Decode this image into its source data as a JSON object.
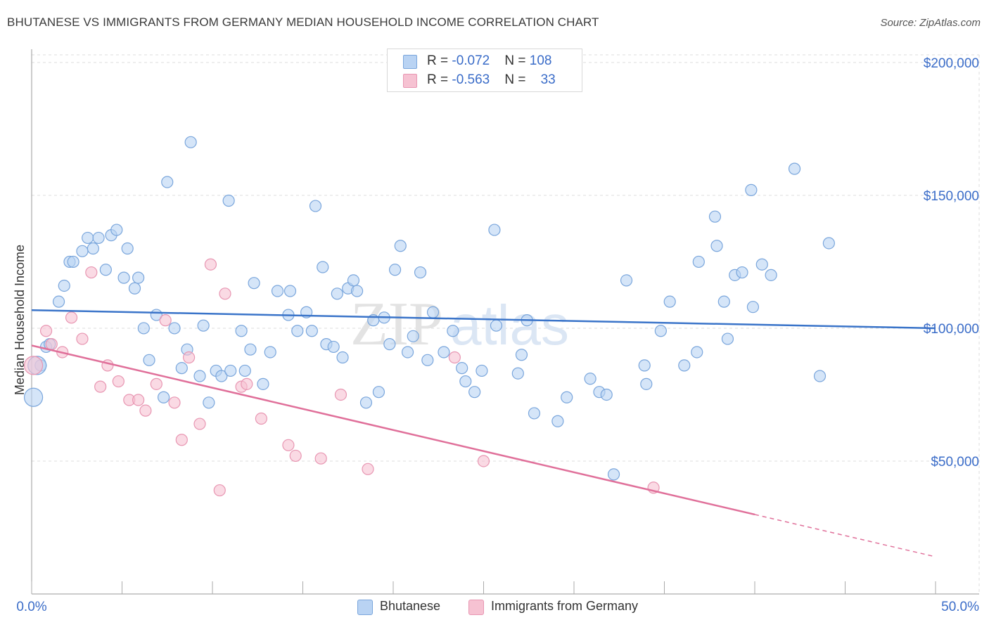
{
  "title": "BHUTANESE VS IMMIGRANTS FROM GERMANY MEDIAN HOUSEHOLD INCOME CORRELATION CHART",
  "source": "Source: ZipAtlas.com",
  "watermark": {
    "zip": "ZIP",
    "atlas": "atlas"
  },
  "legend": {
    "rows": [
      {
        "r_label": "R = ",
        "r_value": "-0.072",
        "n_label": "N = ",
        "n_value": "108"
      },
      {
        "r_label": "R = ",
        "r_value": "-0.563",
        "n_label": "N = ",
        "n_value": "33"
      }
    ]
  },
  "colors": {
    "blue_fill": "#b9d3f3",
    "blue_stroke": "#7aa6dc",
    "blue_line": "#3a74c9",
    "pink_fill": "#f6c2d2",
    "pink_stroke": "#e896b2",
    "pink_line": "#e0709a",
    "axis_label": "#3a6cc8",
    "grid": "#dddddd"
  },
  "chart_data": {
    "type": "scatter",
    "title": "BHUTANESE VS IMMIGRANTS FROM GERMANY MEDIAN HOUSEHOLD INCOME CORRELATION CHART",
    "xlabel": "",
    "ylabel": "Median Household Income",
    "xlim": [
      0,
      50
    ],
    "ylim": [
      0,
      205000
    ],
    "x_tick_labels": [
      "0.0%",
      "50.0%"
    ],
    "y_tick_labels": [
      "$50,000",
      "$100,000",
      "$150,000",
      "$200,000"
    ],
    "y_ticks": [
      50000,
      100000,
      150000,
      200000
    ],
    "grid": true,
    "legend_position": "top-center",
    "series": [
      {
        "name": "Bhutanese",
        "r": -0.072,
        "n": 108,
        "trend": {
          "x": [
            0,
            50
          ],
          "y": [
            106800,
            100000
          ],
          "dashed_from": null
        },
        "points": [
          [
            0.1,
            74000
          ],
          [
            0.5,
            86000
          ],
          [
            0.8,
            93000
          ],
          [
            1.0,
            94000
          ],
          [
            1.5,
            110000
          ],
          [
            1.8,
            116000
          ],
          [
            2.1,
            125000
          ],
          [
            2.3,
            125000
          ],
          [
            2.8,
            129000
          ],
          [
            3.1,
            134000
          ],
          [
            3.4,
            130000
          ],
          [
            3.7,
            134000
          ],
          [
            4.1,
            122000
          ],
          [
            4.4,
            135000
          ],
          [
            4.7,
            137000
          ],
          [
            5.1,
            119000
          ],
          [
            5.3,
            130000
          ],
          [
            5.7,
            115000
          ],
          [
            5.9,
            119000
          ],
          [
            6.2,
            100000
          ],
          [
            6.5,
            88000
          ],
          [
            6.9,
            105000
          ],
          [
            7.3,
            74000
          ],
          [
            7.5,
            155000
          ],
          [
            7.9,
            100000
          ],
          [
            8.3,
            85000
          ],
          [
            8.6,
            92000
          ],
          [
            8.8,
            170000
          ],
          [
            9.3,
            82000
          ],
          [
            9.5,
            101000
          ],
          [
            9.8,
            72000
          ],
          [
            10.2,
            84000
          ],
          [
            10.5,
            82000
          ],
          [
            10.9,
            148000
          ],
          [
            11.0,
            84000
          ],
          [
            11.6,
            99000
          ],
          [
            11.8,
            84000
          ],
          [
            12.1,
            92000
          ],
          [
            12.3,
            117000
          ],
          [
            12.8,
            79000
          ],
          [
            13.2,
            91000
          ],
          [
            13.6,
            114000
          ],
          [
            14.2,
            105000
          ],
          [
            14.3,
            114000
          ],
          [
            14.7,
            99000
          ],
          [
            15.2,
            106000
          ],
          [
            15.5,
            99000
          ],
          [
            15.7,
            146000
          ],
          [
            16.1,
            123000
          ],
          [
            16.3,
            94000
          ],
          [
            16.7,
            93000
          ],
          [
            16.9,
            113000
          ],
          [
            17.2,
            89000
          ],
          [
            17.5,
            115000
          ],
          [
            17.8,
            118000
          ],
          [
            18.0,
            114000
          ],
          [
            18.5,
            72000
          ],
          [
            18.9,
            103000
          ],
          [
            19.2,
            76000
          ],
          [
            19.5,
            104000
          ],
          [
            19.8,
            94000
          ],
          [
            20.1,
            122000
          ],
          [
            20.4,
            131000
          ],
          [
            20.8,
            91000
          ],
          [
            21.1,
            97000
          ],
          [
            21.5,
            121000
          ],
          [
            21.9,
            88000
          ],
          [
            22.2,
            106000
          ],
          [
            22.8,
            91000
          ],
          [
            23.3,
            99000
          ],
          [
            23.8,
            85000
          ],
          [
            24.0,
            80000
          ],
          [
            24.5,
            76000
          ],
          [
            24.9,
            84000
          ],
          [
            25.6,
            137000
          ],
          [
            25.7,
            101000
          ],
          [
            26.9,
            83000
          ],
          [
            27.1,
            90000
          ],
          [
            27.4,
            103000
          ],
          [
            27.8,
            68000
          ],
          [
            29.1,
            65000
          ],
          [
            29.6,
            74000
          ],
          [
            30.9,
            81000
          ],
          [
            31.4,
            76000
          ],
          [
            31.8,
            75000
          ],
          [
            32.2,
            45000
          ],
          [
            32.9,
            118000
          ],
          [
            33.9,
            86000
          ],
          [
            34.0,
            79000
          ],
          [
            34.8,
            99000
          ],
          [
            35.3,
            110000
          ],
          [
            36.1,
            86000
          ],
          [
            36.8,
            91000
          ],
          [
            36.9,
            125000
          ],
          [
            37.8,
            142000
          ],
          [
            37.9,
            131000
          ],
          [
            38.3,
            110000
          ],
          [
            38.5,
            96000
          ],
          [
            38.9,
            120000
          ],
          [
            39.3,
            121000
          ],
          [
            39.8,
            152000
          ],
          [
            39.9,
            108000
          ],
          [
            40.4,
            124000
          ],
          [
            40.9,
            120000
          ],
          [
            42.2,
            160000
          ],
          [
            43.6,
            82000
          ],
          [
            44.1,
            132000
          ],
          [
            0.3,
            86000
          ]
        ]
      },
      {
        "name": "Immigrants from Germany",
        "r": -0.563,
        "n": 33,
        "trend": {
          "x": [
            0,
            50
          ],
          "y": [
            93500,
            14000
          ],
          "dashed_from": 40
        },
        "points": [
          [
            0.1,
            86000
          ],
          [
            0.8,
            99000
          ],
          [
            1.1,
            94000
          ],
          [
            1.7,
            91000
          ],
          [
            2.2,
            104000
          ],
          [
            2.8,
            96000
          ],
          [
            3.3,
            121000
          ],
          [
            3.8,
            78000
          ],
          [
            4.2,
            86000
          ],
          [
            4.8,
            80000
          ],
          [
            5.4,
            73000
          ],
          [
            5.9,
            73000
          ],
          [
            6.3,
            69000
          ],
          [
            6.9,
            79000
          ],
          [
            7.4,
            103000
          ],
          [
            7.9,
            72000
          ],
          [
            8.3,
            58000
          ],
          [
            8.7,
            89000
          ],
          [
            9.3,
            64000
          ],
          [
            9.9,
            124000
          ],
          [
            10.4,
            39000
          ],
          [
            10.7,
            113000
          ],
          [
            11.6,
            78000
          ],
          [
            11.9,
            79000
          ],
          [
            12.7,
            66000
          ],
          [
            14.2,
            56000
          ],
          [
            14.6,
            52000
          ],
          [
            16.0,
            51000
          ],
          [
            17.1,
            75000
          ],
          [
            18.6,
            47000
          ],
          [
            23.4,
            89000
          ],
          [
            25.0,
            50000
          ],
          [
            34.4,
            40000
          ]
        ]
      }
    ]
  },
  "bottom_legend": {
    "items": [
      {
        "label": "Bhutanese"
      },
      {
        "label": "Immigrants from Germany"
      }
    ]
  }
}
